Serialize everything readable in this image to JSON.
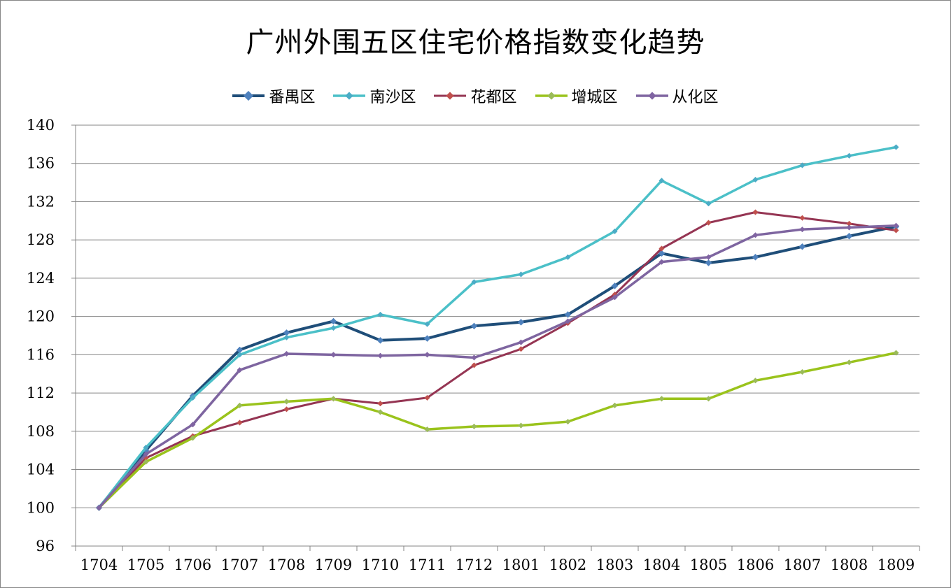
{
  "chart_data": {
    "type": "line",
    "title": "广州外围五区住宅价格指数变化趋势",
    "xlabel": "",
    "ylabel": "",
    "ylim": [
      96,
      140
    ],
    "yticks": [
      96,
      100,
      104,
      108,
      112,
      116,
      120,
      124,
      128,
      132,
      136,
      140
    ],
    "grid": "horizontal",
    "legend_position": "top",
    "categories": [
      "1704",
      "1705",
      "1706",
      "1707",
      "1708",
      "1709",
      "1710",
      "1711",
      "1712",
      "1801",
      "1802",
      "1803",
      "1804",
      "1805",
      "1806",
      "1807",
      "1808",
      "1809"
    ],
    "series": [
      {
        "name": "番禺区",
        "color": "#1F4E79",
        "width": 4,
        "marker": "diamond",
        "values": [
          100,
          106.0,
          111.7,
          116.5,
          118.3,
          119.5,
          117.5,
          117.7,
          119.0,
          119.4,
          120.2,
          123.2,
          126.6,
          125.6,
          126.2,
          127.3,
          128.4,
          129.4
        ]
      },
      {
        "name": "南沙区",
        "color": "#4BC0C8",
        "width": 3.5,
        "marker": "diamond",
        "values": [
          100,
          106.3,
          111.5,
          116.0,
          117.8,
          118.8,
          120.2,
          119.2,
          123.6,
          124.4,
          126.2,
          128.9,
          134.2,
          131.8,
          134.3,
          135.8,
          136.8,
          137.7
        ]
      },
      {
        "name": "花都区",
        "color": "#953553",
        "width": 3,
        "marker": "diamond",
        "values": [
          100,
          105.2,
          107.5,
          108.9,
          110.3,
          111.4,
          110.9,
          111.5,
          114.9,
          116.6,
          119.3,
          122.3,
          127.1,
          129.8,
          130.9,
          130.3,
          129.7,
          129.0
        ]
      },
      {
        "name": "增城区",
        "color": "#9AC31C",
        "width": 3.5,
        "marker": "diamond",
        "values": [
          100,
          104.8,
          107.3,
          110.7,
          111.1,
          111.4,
          110.0,
          108.2,
          108.5,
          108.6,
          109.0,
          110.7,
          111.4,
          111.4,
          113.3,
          114.2,
          115.2,
          116.2
        ]
      },
      {
        "name": "从化区",
        "color": "#7E65A0",
        "width": 3.5,
        "marker": "diamond",
        "values": [
          100,
          105.6,
          108.7,
          114.4,
          116.1,
          116.0,
          115.9,
          116.0,
          115.7,
          117.3,
          119.5,
          122.0,
          125.7,
          126.2,
          128.5,
          129.1,
          129.3,
          129.5
        ]
      }
    ]
  }
}
